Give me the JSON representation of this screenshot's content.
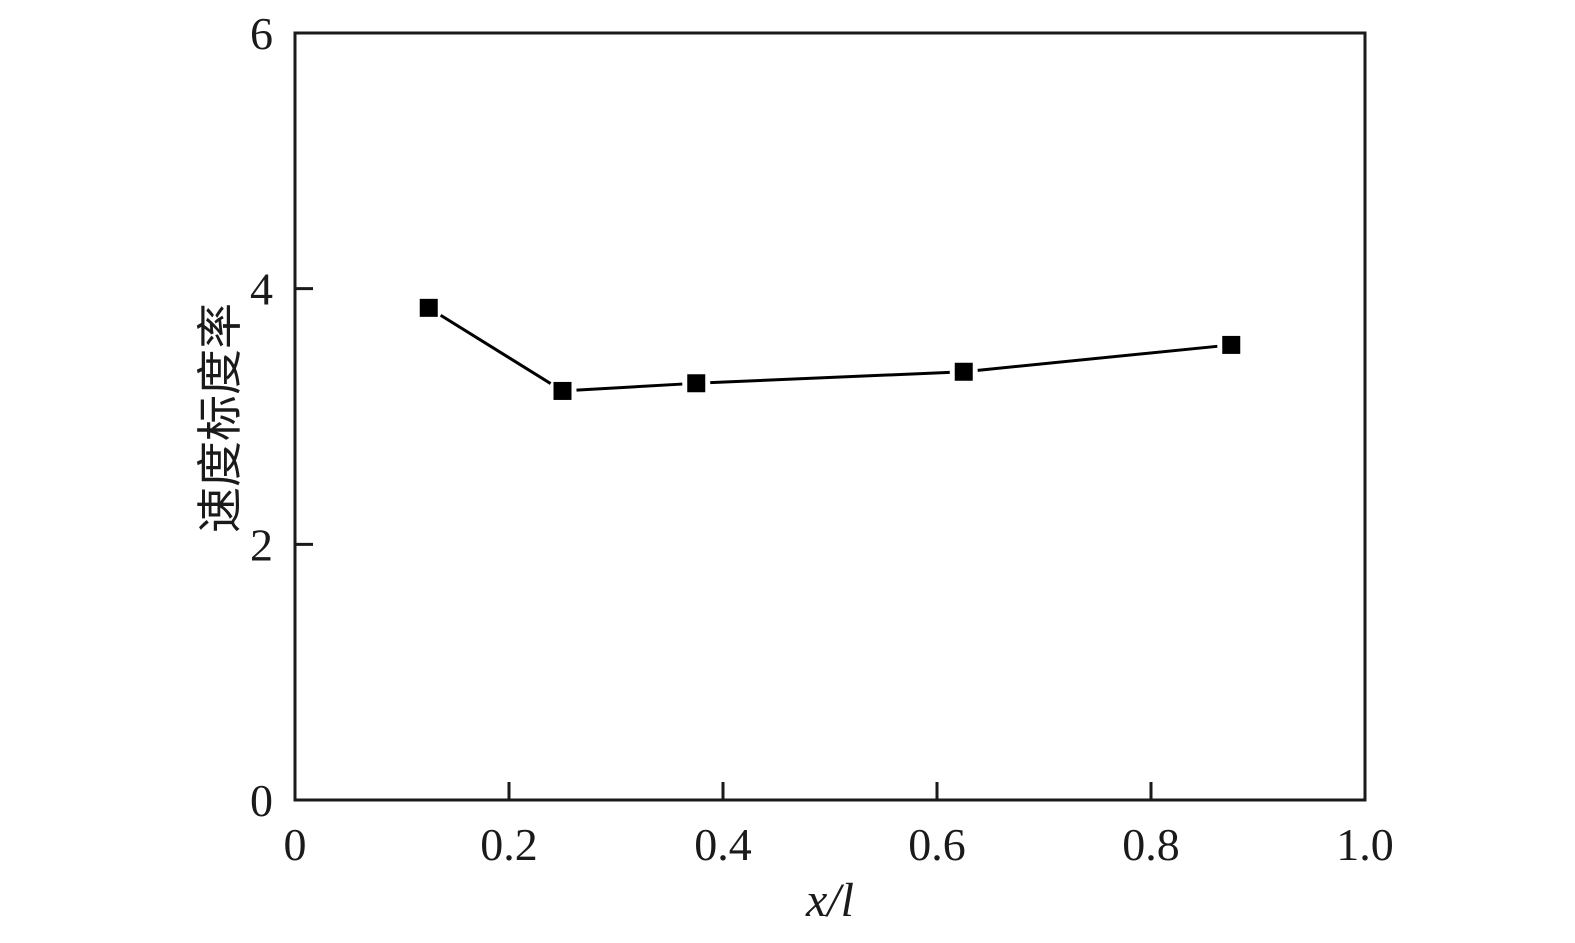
{
  "chart_data": {
    "type": "line",
    "title": "",
    "xlabel": "x/l",
    "ylabel": "速度标度率",
    "xlim": [
      0,
      1.0
    ],
    "ylim": [
      0,
      6
    ],
    "x_ticks": [
      0,
      0.2,
      0.4,
      0.6,
      0.8,
      1.0
    ],
    "x_tick_labels": [
      "0",
      "0.2",
      "0.4",
      "0.6",
      "0.8",
      "1.0"
    ],
    "y_ticks": [
      0,
      2,
      4,
      6
    ],
    "y_tick_labels": [
      "0",
      "2",
      "4",
      "6"
    ],
    "grid": false,
    "legend": "none",
    "series": [
      {
        "x": [
          0.125,
          0.25,
          0.375,
          0.625,
          0.875
        ],
        "y": [
          3.85,
          3.2,
          3.26,
          3.35,
          3.56
        ],
        "marker": "square",
        "color": "#000000"
      }
    ]
  }
}
